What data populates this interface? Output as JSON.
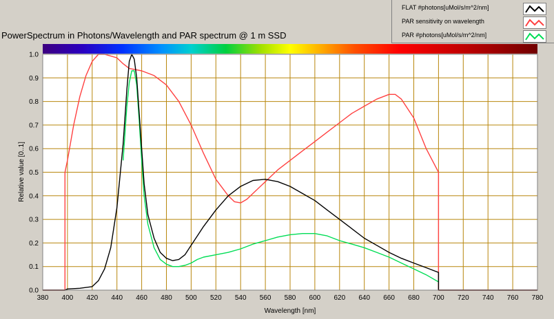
{
  "title": "PowerSpectrum in Photons/Wavelength and PAR spectrum @ 1 m SSD",
  "legend": [
    {
      "label": "FLAT #photons[uMol/s/m^2/nm]",
      "color": "#000000"
    },
    {
      "label": "PAR sensitivity on wavelength",
      "color": "#ff4040"
    },
    {
      "label": "PAR #photons[uMol/s/m^2/nm]",
      "color": "#00dd55"
    }
  ],
  "colors": {
    "plot_bg": "#ffffff",
    "grid": "#b8860b",
    "panel": "#d4d0c8"
  },
  "chart_data": {
    "type": "line",
    "xlabel": "Wavelength [nm]",
    "ylabel": "Relative value [0..1]",
    "xlim": [
      380,
      780
    ],
    "ylim": [
      0,
      1.0
    ],
    "xticks": [
      380,
      400,
      420,
      440,
      460,
      480,
      500,
      520,
      540,
      560,
      580,
      600,
      620,
      640,
      660,
      680,
      700,
      720,
      740,
      760,
      780
    ],
    "yticks": [
      0.0,
      0.1,
      0.2,
      0.3,
      0.4,
      0.5,
      0.6,
      0.7,
      0.8,
      0.9,
      1.0
    ],
    "grid": true,
    "legend_position": "top-right",
    "spectrum_bar": true,
    "series": [
      {
        "name": "FLAT #photons[uMol/s/m^2/nm]",
        "color": "#000000",
        "x": [
          380,
          398,
          400,
          410,
          420,
          425,
          430,
          435,
          440,
          445,
          448,
          450,
          452,
          454,
          456,
          458,
          460,
          462,
          465,
          470,
          475,
          480,
          485,
          490,
          495,
          500,
          505,
          510,
          520,
          530,
          540,
          550,
          560,
          570,
          580,
          590,
          600,
          610,
          620,
          630,
          640,
          650,
          660,
          670,
          680,
          690,
          700,
          700.01,
          780
        ],
        "y": [
          0,
          0,
          0.005,
          0.008,
          0.015,
          0.04,
          0.09,
          0.18,
          0.35,
          0.62,
          0.85,
          0.97,
          1.0,
          0.98,
          0.9,
          0.75,
          0.6,
          0.45,
          0.32,
          0.22,
          0.16,
          0.135,
          0.125,
          0.13,
          0.15,
          0.19,
          0.23,
          0.27,
          0.34,
          0.4,
          0.44,
          0.465,
          0.47,
          0.46,
          0.44,
          0.41,
          0.38,
          0.34,
          0.3,
          0.26,
          0.22,
          0.19,
          0.16,
          0.135,
          0.115,
          0.095,
          0.075,
          0,
          0
        ]
      },
      {
        "name": "PAR sensitivity on wavelength",
        "color": "#ff4040",
        "x": [
          380,
          398,
          398,
          400,
          405,
          410,
          415,
          420,
          425,
          430,
          440,
          445,
          450,
          460,
          470,
          480,
          490,
          500,
          510,
          520,
          530,
          535,
          540,
          545,
          550,
          560,
          570,
          580,
          590,
          600,
          610,
          620,
          630,
          640,
          650,
          660,
          665,
          670,
          680,
          690,
          700,
          700.01,
          780
        ],
        "y": [
          0,
          0,
          0.5,
          0.55,
          0.7,
          0.82,
          0.91,
          0.97,
          1.0,
          1.0,
          0.985,
          0.96,
          0.94,
          0.93,
          0.91,
          0.87,
          0.8,
          0.7,
          0.58,
          0.47,
          0.4,
          0.375,
          0.37,
          0.385,
          0.41,
          0.46,
          0.51,
          0.55,
          0.59,
          0.63,
          0.67,
          0.71,
          0.75,
          0.78,
          0.81,
          0.83,
          0.83,
          0.81,
          0.73,
          0.6,
          0.5,
          0,
          0
        ]
      },
      {
        "name": "PAR #photons[uMol/s/m^2/nm]",
        "color": "#00dd55",
        "x": [
          445,
          448,
          450,
          452,
          454,
          456,
          458,
          460,
          462,
          465,
          470,
          475,
          480,
          485,
          490,
          495,
          500,
          505,
          510,
          520,
          530,
          540,
          550,
          560,
          570,
          580,
          590,
          600,
          610,
          620,
          630,
          640,
          650,
          660,
          670,
          680,
          690,
          700
        ],
        "y": [
          0.55,
          0.78,
          0.88,
          0.93,
          0.93,
          0.87,
          0.72,
          0.55,
          0.4,
          0.28,
          0.18,
          0.13,
          0.11,
          0.1,
          0.1,
          0.105,
          0.115,
          0.13,
          0.14,
          0.15,
          0.16,
          0.175,
          0.195,
          0.21,
          0.225,
          0.235,
          0.24,
          0.24,
          0.23,
          0.21,
          0.195,
          0.18,
          0.16,
          0.14,
          0.115,
          0.09,
          0.065,
          0.035
        ]
      }
    ]
  }
}
